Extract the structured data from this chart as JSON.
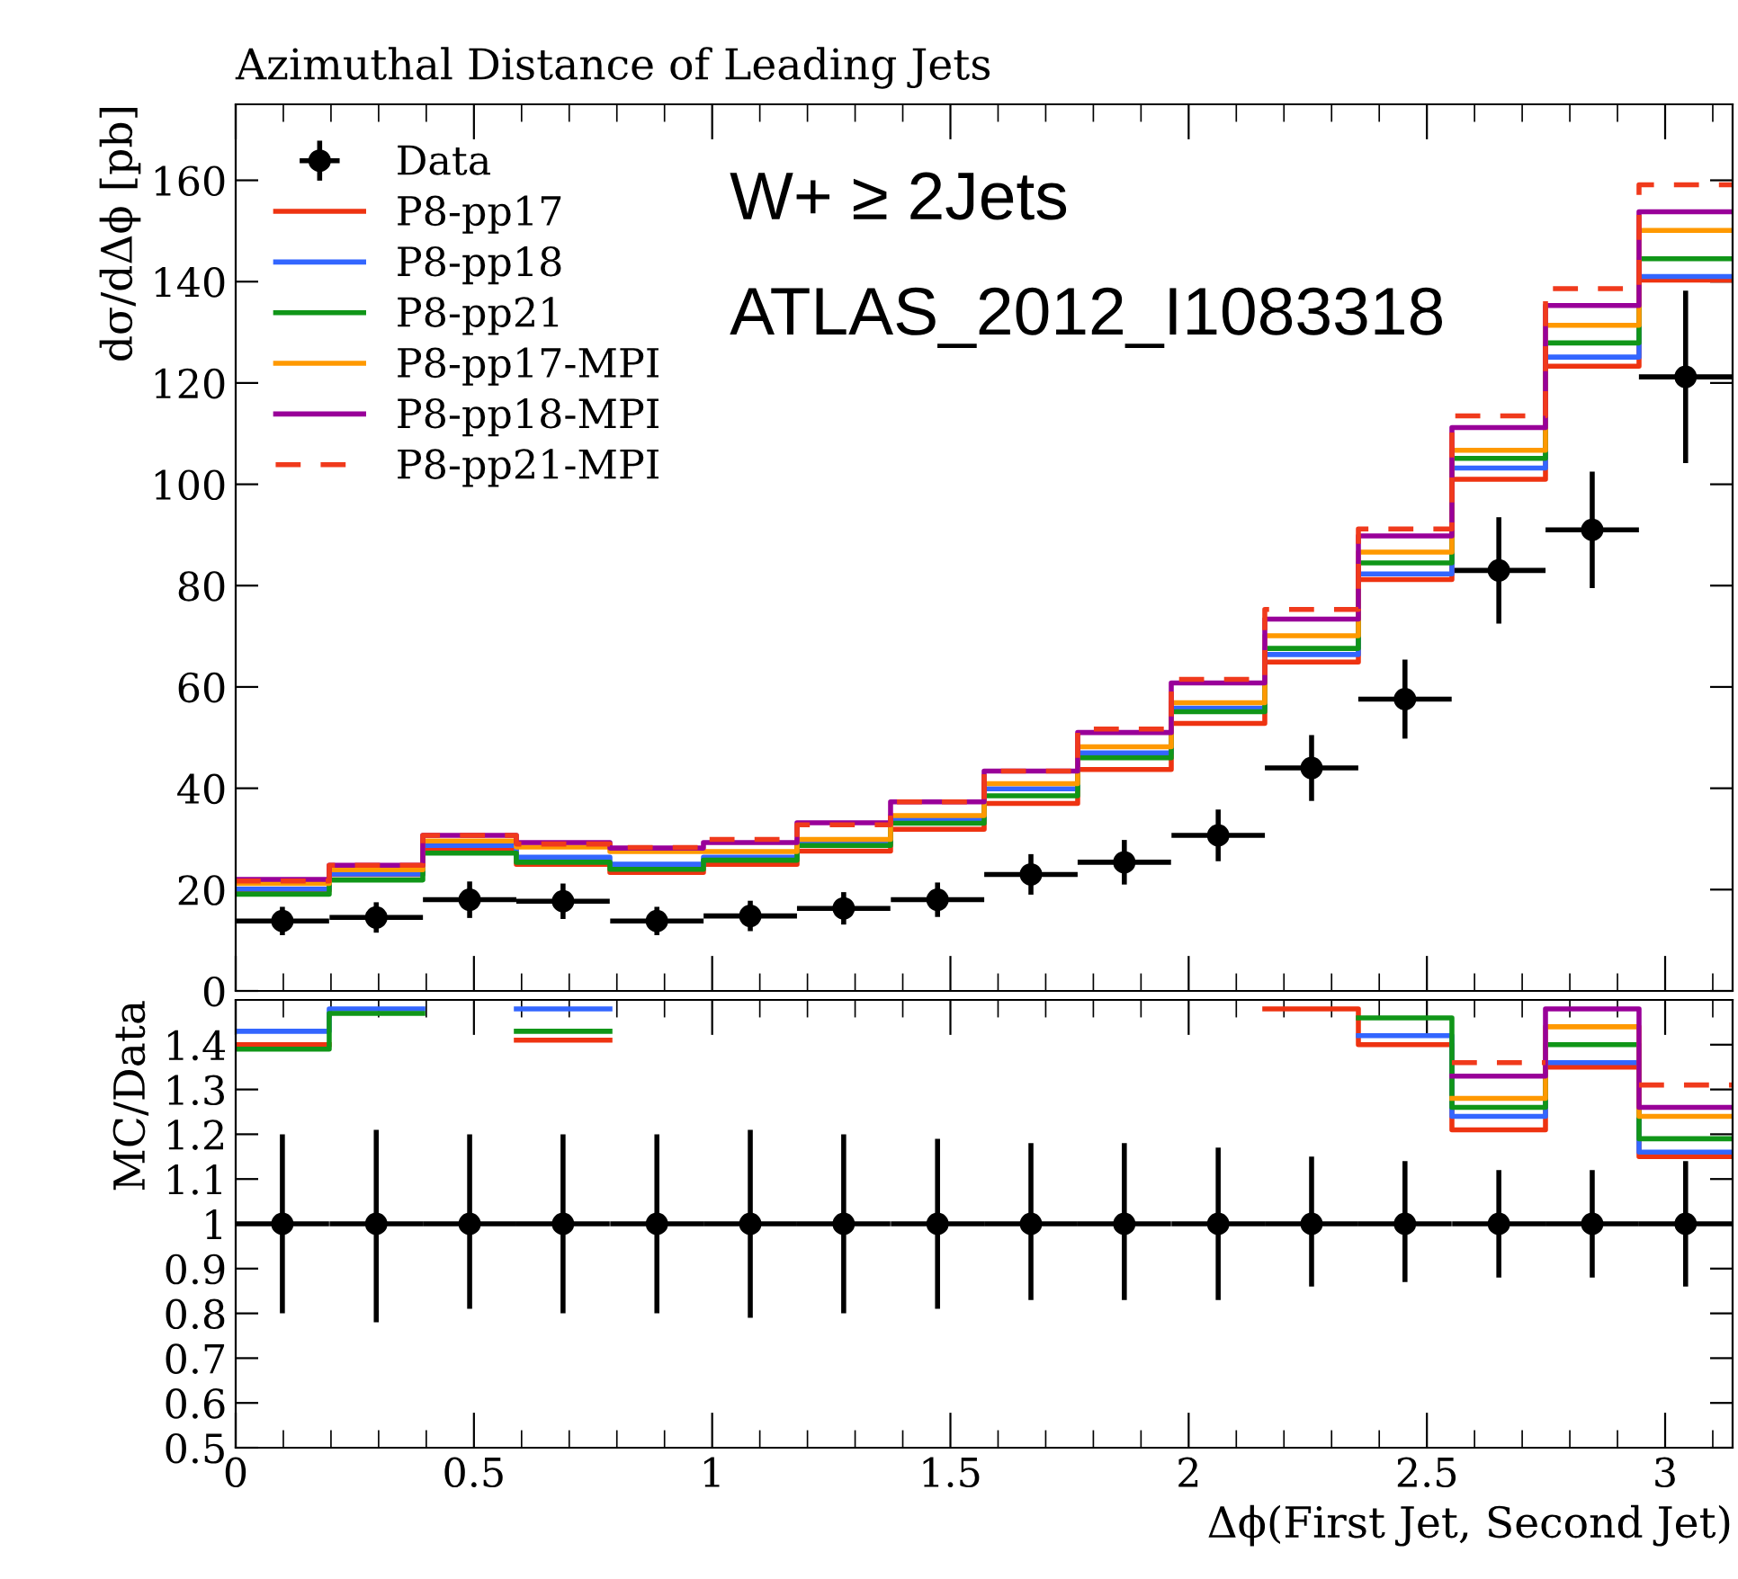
{
  "chart_data": [
    {
      "type": "step",
      "title": "Azimuthal Distance of Leading Jets",
      "ylabel": "dσ/dΔϕ [pb]",
      "x": [
        0,
        0.1963,
        0.3927,
        0.589,
        0.7854,
        0.9817,
        1.1781,
        1.3744,
        1.5708,
        1.7671,
        1.9635,
        2.1598,
        2.3562,
        2.5525,
        2.7489,
        2.9452,
        3.1416
      ],
      "xlim": [
        0,
        3.1416
      ],
      "xticks": [
        0,
        0.5,
        1,
        1.5,
        2,
        2.5,
        3
      ],
      "ylim": [
        0,
        175
      ],
      "yticks": [
        0,
        20,
        40,
        60,
        80,
        100,
        120,
        140,
        160
      ],
      "tick_labels": "y",
      "legend": "top left",
      "grid": false,
      "annotations": [
        "W+ ≥ 2Jets",
        "ATLAS_2012_I1083318"
      ],
      "series": [
        {
          "name": "Data",
          "type": "scatter",
          "marker": "circle",
          "color": "#000000",
          "x": [
            0.098,
            0.295,
            0.491,
            0.687,
            0.884,
            1.08,
            1.276,
            1.473,
            1.669,
            1.865,
            2.062,
            2.258,
            2.454,
            2.651,
            2.847,
            3.043
          ],
          "values": [
            13.8,
            14.5,
            18.0,
            17.7,
            13.8,
            14.8,
            16.3,
            18.0,
            23.0,
            25.4,
            30.7,
            44.0,
            57.6,
            83.0,
            91.0,
            121.2
          ],
          "errors": [
            2.8,
            3.0,
            3.6,
            3.5,
            2.8,
            3.0,
            3.2,
            3.4,
            4.0,
            4.4,
            5.1,
            6.5,
            7.8,
            10.5,
            11.5,
            17
          ],
          "xerrors": [
            0.098,
            0.098,
            0.098,
            0.098,
            0.098,
            0.098,
            0.098,
            0.098,
            0.098,
            0.098,
            0.098,
            0.098,
            0.098,
            0.098,
            0.098,
            0.098
          ]
        },
        {
          "name": "P8-pp17",
          "color": "#ee3311",
          "line_style": "solid",
          "values": [
            19.8,
            23.0,
            28.2,
            25.0,
            23.4,
            25.0,
            27.6,
            31.9,
            37.0,
            43.7,
            52.8,
            64.9,
            81.2,
            101.0,
            123.3,
            140.3,
            140.3
          ]
        },
        {
          "name": "P8-pp18",
          "color": "#3366ff",
          "line_style": "solid",
          "values": [
            20.1,
            23.1,
            28.7,
            26.4,
            25.0,
            26.4,
            29.3,
            33.8,
            39.9,
            47.0,
            55.8,
            66.4,
            82.3,
            103.2,
            125.1,
            141.0,
            141.0
          ]
        },
        {
          "name": "P8-pp21",
          "color": "#109618",
          "line_style": "solid",
          "values": [
            19.1,
            21.9,
            27.2,
            25.4,
            24.0,
            25.8,
            28.7,
            33.1,
            38.5,
            46.0,
            55.1,
            67.6,
            84.5,
            105.1,
            127.9,
            144.5,
            144.5
          ]
        },
        {
          "name": "P8-pp17-MPI",
          "color": "#ff9900",
          "line_style": "solid",
          "values": [
            21.2,
            23.9,
            29.6,
            28.4,
            27.5,
            27.5,
            29.9,
            34.6,
            40.9,
            48.2,
            56.9,
            70.1,
            86.6,
            106.7,
            131.4,
            150.1,
            150.1
          ]
        },
        {
          "name": "P8-pp18-MPI",
          "color": "#990099",
          "line_style": "solid",
          "values": [
            22.0,
            24.8,
            30.7,
            29.3,
            28.2,
            29.3,
            33.2,
            37.3,
            43.4,
            51.0,
            60.8,
            73.4,
            89.8,
            111.2,
            135.3,
            153.8,
            153.8
          ]
        },
        {
          "name": "P8-pp21-MPI",
          "color": "#f03a1c",
          "line_style": "dashed",
          "values": [
            21.7,
            24.8,
            30.7,
            29.0,
            28.3,
            29.9,
            32.8,
            37.3,
            43.4,
            51.7,
            61.5,
            75.3,
            91.2,
            113.5,
            138.6,
            159.1,
            159.1
          ]
        }
      ]
    },
    {
      "type": "step",
      "xlabel": "Δϕ(First Jet, Second Jet)",
      "ylabel": "MC/Data",
      "x": [
        0,
        0.1963,
        0.3927,
        0.589,
        0.7854,
        0.9817,
        1.1781,
        1.3744,
        1.5708,
        1.7671,
        1.9635,
        2.1598,
        2.3562,
        2.5525,
        2.7489,
        2.9452,
        3.1416
      ],
      "grid": false,
      "xlim": [
        0,
        3.1416
      ],
      "xticks": [
        0,
        0.5,
        1,
        1.5,
        2,
        2.5,
        3
      ],
      "ylim": [
        0.5,
        1.5
      ],
      "yticks": [
        0.5,
        0.6,
        0.7,
        0.8,
        0.9,
        1,
        1.1,
        1.2,
        1.3,
        1.4
      ],
      "series": [
        {
          "type": "scatter",
          "marker": "circle",
          "color": "#000000",
          "x": [
            0.098,
            0.295,
            0.491,
            0.687,
            0.884,
            1.08,
            1.276,
            1.473,
            1.669,
            1.865,
            2.062,
            2.258,
            2.454,
            2.651,
            2.847,
            3.043
          ],
          "values": [
            1,
            1,
            1,
            1,
            1,
            1,
            1,
            1,
            1,
            1,
            1,
            1,
            1,
            1,
            1,
            1
          ],
          "errors": [
            [
              0.8,
              1.2
            ],
            [
              0.78,
              1.21
            ],
            [
              0.81,
              1.2
            ],
            [
              0.8,
              1.2
            ],
            [
              0.8,
              1.2
            ],
            [
              0.79,
              1.21
            ],
            [
              0.8,
              1.2
            ],
            [
              0.81,
              1.19
            ],
            [
              0.83,
              1.18
            ],
            [
              0.83,
              1.18
            ],
            [
              0.83,
              1.17
            ],
            [
              0.86,
              1.15
            ],
            [
              0.87,
              1.14
            ],
            [
              0.88,
              1.12
            ],
            [
              0.88,
              1.12
            ],
            [
              0.86,
              1.14
            ]
          ],
          "xerrors": [
            0.098,
            0.098,
            0.098,
            0.098,
            0.098,
            0.098,
            0.098,
            0.098,
            0.098,
            0.098,
            0.098,
            0.098,
            0.098,
            0.098,
            0.098,
            0.098
          ]
        },
        {
          "color": "#ee3311",
          "line_style": "solid",
          "values": [
            1.4,
            null,
            null,
            1.41,
            null,
            null,
            null,
            null,
            null,
            null,
            null,
            1.48,
            1.4,
            1.21,
            1.35,
            1.15,
            1.15
          ]
        },
        {
          "color": "#3366ff",
          "line_style": "solid",
          "values": [
            1.43,
            1.48,
            null,
            1.48,
            null,
            null,
            null,
            null,
            null,
            null,
            null,
            null,
            1.42,
            1.24,
            1.36,
            1.16,
            1.16
          ]
        },
        {
          "color": "#109618",
          "line_style": "solid",
          "values": [
            1.39,
            1.47,
            null,
            1.43,
            null,
            null,
            null,
            null,
            null,
            null,
            null,
            null,
            1.46,
            1.26,
            1.4,
            1.19,
            1.19
          ]
        },
        {
          "color": "#ff9900",
          "line_style": "solid",
          "values": [
            null,
            null,
            null,
            null,
            null,
            null,
            null,
            null,
            null,
            null,
            null,
            null,
            null,
            1.28,
            1.44,
            1.24,
            1.24
          ]
        },
        {
          "color": "#990099",
          "line_style": "solid",
          "values": [
            null,
            null,
            null,
            null,
            null,
            null,
            null,
            null,
            null,
            null,
            null,
            null,
            null,
            1.33,
            1.48,
            1.26,
            1.26
          ]
        },
        {
          "color": "#f03a1c",
          "line_style": "dashed",
          "values": [
            null,
            null,
            null,
            null,
            null,
            null,
            null,
            null,
            null,
            null,
            null,
            null,
            null,
            1.36,
            null,
            1.31,
            1.31
          ]
        }
      ]
    }
  ]
}
